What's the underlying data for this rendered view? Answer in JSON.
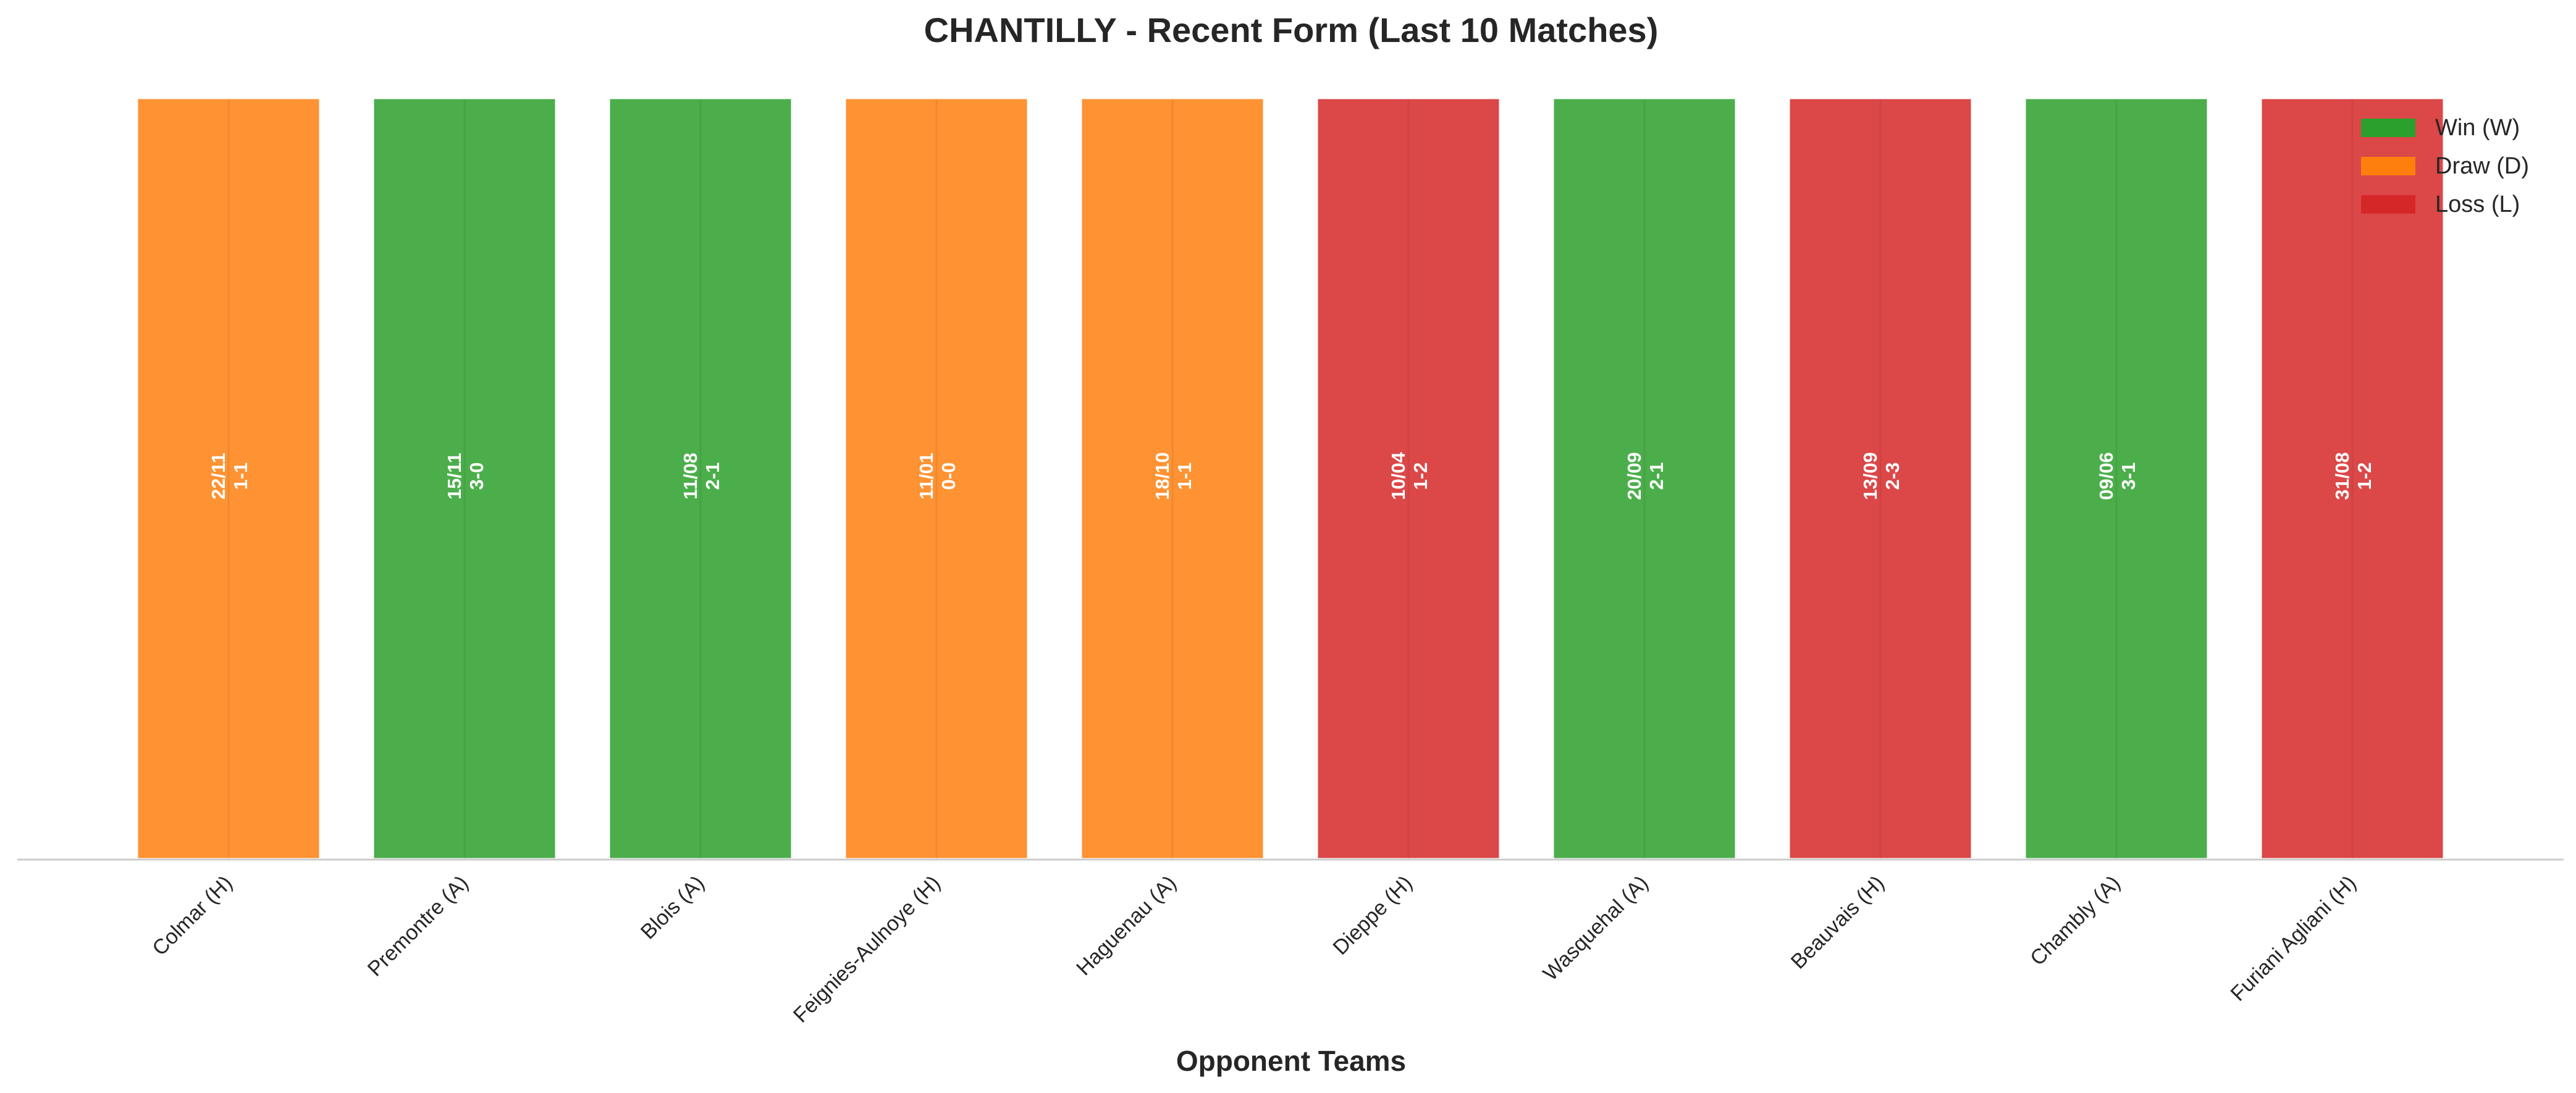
{
  "chart_data": {
    "type": "bar",
    "title": "CHANTILLY - Recent Form (Last 10 Matches)",
    "xlabel": "Opponent Teams",
    "ylabel": "",
    "ylim": [
      0,
      1
    ],
    "grid": false,
    "legend_position": "top-right",
    "categories": [
      "Colmar (H)",
      "Premontre (A)",
      "Blois (A)",
      "Feignies-Aulnoye (H)",
      "Haguenau (A)",
      "Dieppe (H)",
      "Wasquehal (A)",
      "Beauvais (H)",
      "Chambly (A)",
      "Furiani Agliani (H)"
    ],
    "values": [
      1,
      1,
      1,
      1,
      1,
      1,
      1,
      1,
      1,
      1
    ],
    "results": [
      "D",
      "W",
      "W",
      "D",
      "D",
      "L",
      "W",
      "L",
      "W",
      "L"
    ],
    "dates": [
      "22/11",
      "15/11",
      "11/08",
      "11/01",
      "18/10",
      "10/04",
      "20/09",
      "13/09",
      "09/06",
      "31/08"
    ],
    "scores": [
      "1-1",
      "3-0",
      "2-1",
      "0-0",
      "1-1",
      "1-2",
      "2-1",
      "2-3",
      "3-1",
      "1-2"
    ],
    "legend": [
      {
        "key": "W",
        "label": "Win (W)",
        "color": "#2ca02c"
      },
      {
        "key": "D",
        "label": "Draw (D)",
        "color": "#ff7f0e"
      },
      {
        "key": "L",
        "label": "Loss (L)",
        "color": "#d62728"
      }
    ]
  }
}
